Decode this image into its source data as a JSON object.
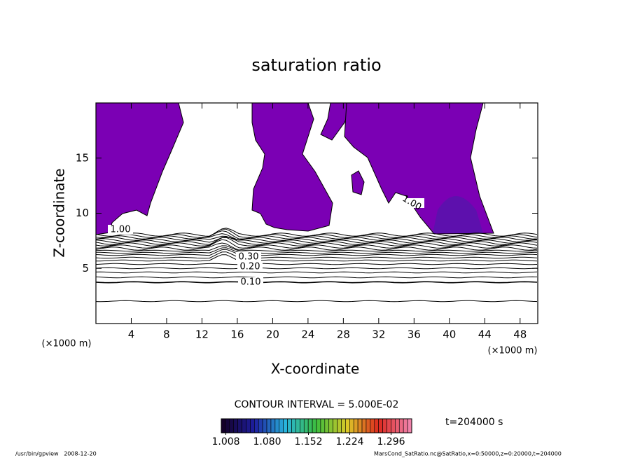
{
  "chart_data": {
    "type": "contour",
    "title": "saturation ratio",
    "x_label": "X-coordinate",
    "y_label": "Z-coordinate",
    "x_unit": "(×1000 m)",
    "xlim": [
      0,
      50
    ],
    "xticks": [
      4,
      8,
      12,
      16,
      20,
      24,
      28,
      32,
      36,
      40,
      44,
      48
    ],
    "ylim": [
      0,
      20
    ],
    "yticks": [
      5,
      10,
      15
    ],
    "fill_color": "#7b00b4",
    "contour_labels": [
      {
        "value": 0.1,
        "label": "0.10"
      },
      {
        "value": 0.2,
        "label": "0.20"
      },
      {
        "value": 0.3,
        "label": "0.30"
      },
      {
        "value": 1,
        "label": "1.00"
      },
      {
        "value": 1,
        "label": "1.00"
      }
    ],
    "contour_interval_label": "CONTOUR INTERVAL = 5.000E-02",
    "colorbar": {
      "clim": [
        1.0,
        1.332
      ],
      "ticks": [
        {
          "value": 1.008,
          "label": "1.008"
        },
        {
          "value": 1.08,
          "label": "1.080"
        },
        {
          "value": 1.152,
          "label": "1.152"
        },
        {
          "value": 1.224,
          "label": "1.224"
        },
        {
          "value": 1.296,
          "label": "1.296"
        }
      ]
    },
    "time_label": "t=204000 s",
    "footer_left": "/usr/bin/gpview   2008-12-20",
    "footer_right": "MarsCond_SatRatio.nc@SatRatio,x=0:50000,z=0:20000,t=204000"
  }
}
